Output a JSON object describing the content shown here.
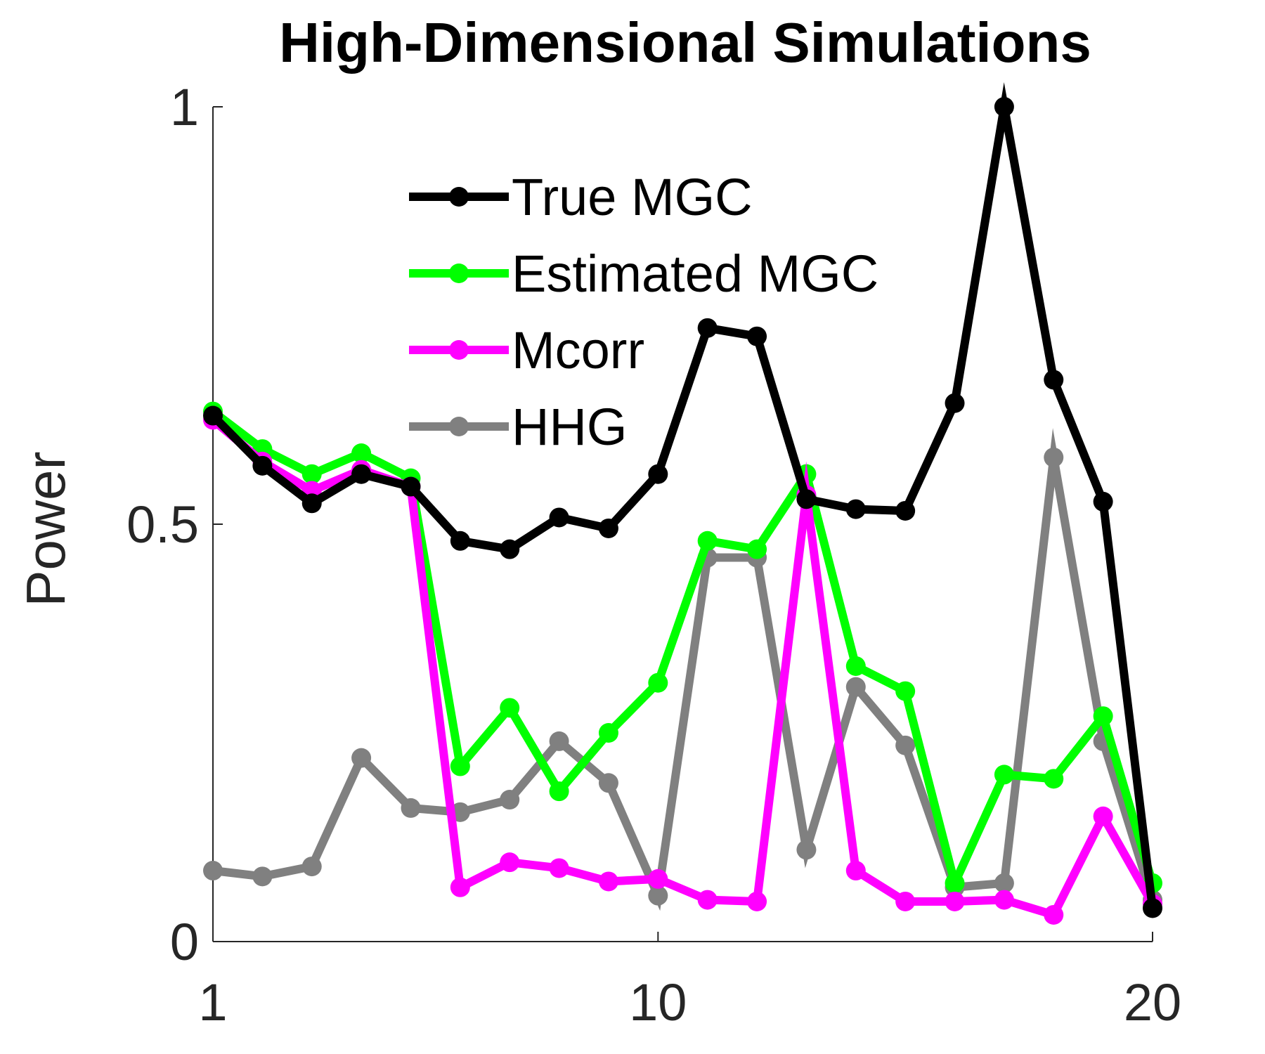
{
  "chart_data": {
    "type": "line",
    "title": "High-Dimensional Simulations",
    "ylabel": "Power",
    "xlabel": "",
    "xlim": [
      1,
      20
    ],
    "ylim": [
      0,
      1
    ],
    "xticks": [
      1,
      10,
      20
    ],
    "yticks": [
      0,
      0.5,
      1
    ],
    "grid": false,
    "legend_position": "top-center",
    "x": [
      1,
      2,
      3,
      4,
      5,
      6,
      7,
      8,
      9,
      10,
      11,
      12,
      13,
      14,
      15,
      16,
      17,
      18,
      19,
      20
    ],
    "series": [
      {
        "name": "True MGC",
        "color": "#000000",
        "values": [
          0.63,
          0.57,
          0.525,
          0.56,
          0.545,
          0.48,
          0.47,
          0.508,
          0.495,
          0.56,
          0.735,
          0.725,
          0.53,
          0.518,
          0.516,
          0.645,
          1.0,
          0.673,
          0.527,
          0.04
        ]
      },
      {
        "name": "Estimated MGC",
        "color": "#00ff00",
        "values": [
          0.635,
          0.59,
          0.56,
          0.585,
          0.555,
          0.21,
          0.28,
          0.18,
          0.25,
          0.31,
          0.48,
          0.47,
          0.56,
          0.33,
          0.3,
          0.07,
          0.2,
          0.195,
          0.27,
          0.07
        ]
      },
      {
        "name": "Mcorr",
        "color": "#ff00ff",
        "values": [
          0.625,
          0.575,
          0.54,
          0.565,
          0.545,
          0.065,
          0.095,
          0.088,
          0.072,
          0.075,
          0.05,
          0.048,
          0.535,
          0.085,
          0.048,
          0.048,
          0.05,
          0.032,
          0.15,
          0.045
        ]
      },
      {
        "name": "HHG",
        "color": "#808080",
        "values": [
          0.085,
          0.078,
          0.09,
          0.22,
          0.16,
          0.155,
          0.17,
          0.24,
          0.19,
          0.055,
          0.46,
          0.46,
          0.11,
          0.305,
          0.235,
          0.065,
          0.07,
          0.58,
          0.24,
          0.05
        ]
      }
    ]
  }
}
